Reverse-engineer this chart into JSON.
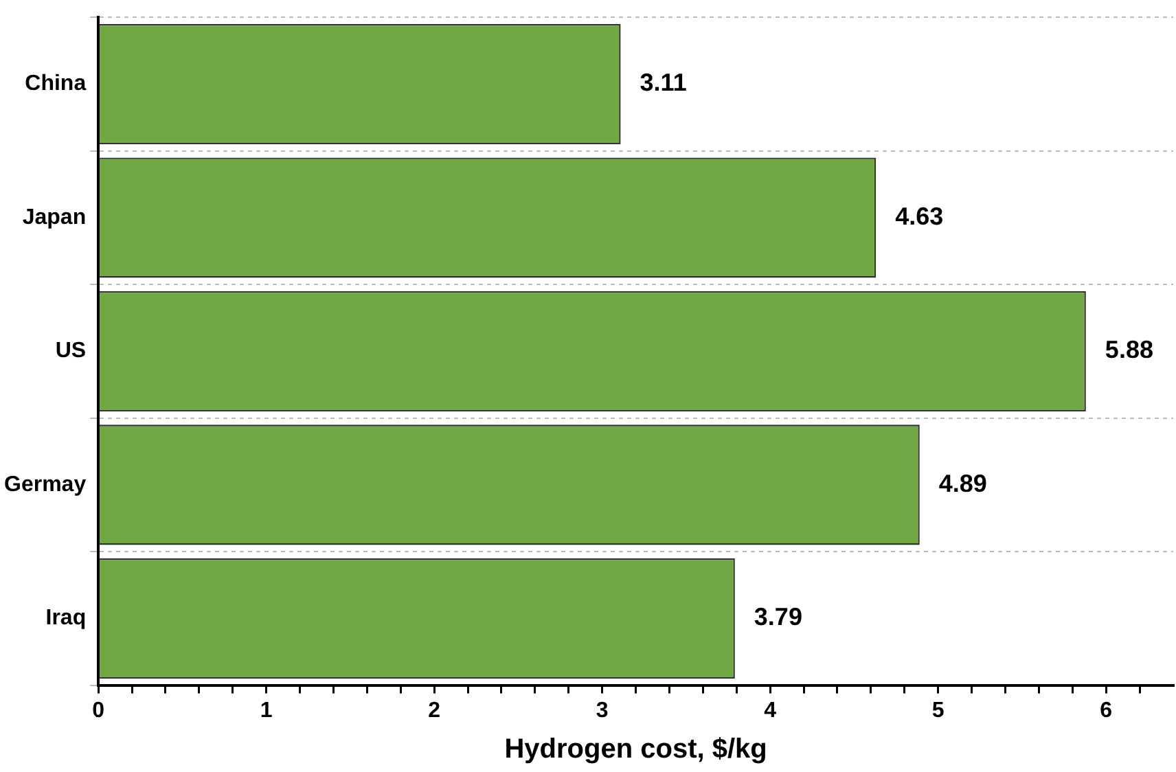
{
  "chart_data": {
    "type": "bar",
    "orientation": "horizontal",
    "xlabel": "Hydrogen cost, $/kg",
    "categories": [
      "China",
      "Japan",
      "US",
      "Germay",
      "Iraq"
    ],
    "values": [
      3.11,
      4.63,
      5.88,
      4.89,
      3.79
    ],
    "color": "#70a844",
    "data_labels": true,
    "xlim": [
      0,
      6.4
    ],
    "xticks": [
      0,
      {
        "value": 0.2,
        "label": null
      },
      {
        "value": 0.4,
        "label": null
      },
      {
        "value": 0.6,
        "label": null
      },
      {
        "value": 0.8,
        "label": null
      },
      1,
      {
        "value": 1.2,
        "label": null
      },
      {
        "value": 1.4,
        "label": null
      },
      {
        "value": 1.6,
        "label": null
      },
      {
        "value": 1.8,
        "label": null
      },
      2,
      {
        "value": 2.2,
        "label": null
      },
      {
        "value": 2.4,
        "label": null
      },
      {
        "value": 2.6,
        "label": null
      },
      {
        "value": 2.8,
        "label": null
      },
      3,
      {
        "value": 3.2,
        "label": null
      },
      {
        "value": 3.4,
        "label": null
      },
      {
        "value": 3.6,
        "label": null
      },
      {
        "value": 3.8,
        "label": null
      },
      4,
      {
        "value": 4.2,
        "label": null
      },
      {
        "value": 4.4,
        "label": null
      },
      {
        "value": 4.6,
        "label": null
      },
      {
        "value": 4.8,
        "label": null
      },
      5,
      {
        "value": 5.2,
        "label": null
      },
      {
        "value": 5.4,
        "label": null
      },
      {
        "value": 5.6,
        "label": null
      },
      {
        "value": 5.8,
        "label": null
      },
      6,
      {
        "value": 6.2,
        "label": null
      }
    ],
    "grid": "y",
    "legend": false
  }
}
